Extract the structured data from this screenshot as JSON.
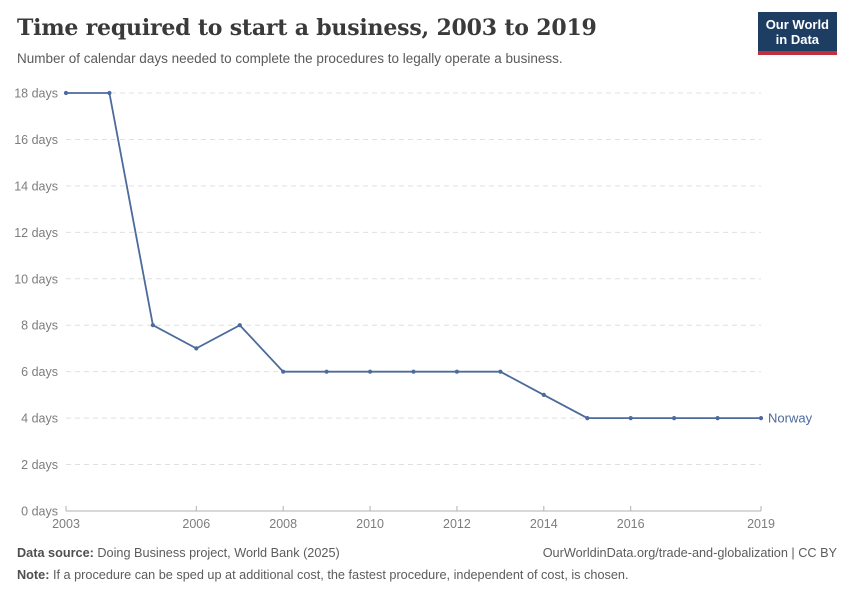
{
  "header": {
    "title": "Time required to start a business, 2003 to 2019",
    "subtitle": "Number of calendar days needed to complete the procedures to legally operate a business.",
    "logo_line1": "Our World",
    "logo_line2": "in Data"
  },
  "chart_data": {
    "type": "line",
    "title": "Time required to start a business, 2003 to 2019",
    "xlabel": "",
    "ylabel": "",
    "xlim": [
      2003,
      2019
    ],
    "ylim": [
      0,
      18
    ],
    "x_ticks": [
      2003,
      2006,
      2008,
      2010,
      2012,
      2014,
      2016,
      2019
    ],
    "y_ticks": [
      0,
      2,
      4,
      6,
      8,
      10,
      12,
      14,
      16,
      18
    ],
    "y_tick_suffix": " days",
    "grid": "horizontal-dashed",
    "legend_position": "end-of-line",
    "series": [
      {
        "name": "Norway",
        "color": "#4C6A9C",
        "x": [
          2003,
          2004,
          2005,
          2006,
          2007,
          2008,
          2009,
          2010,
          2011,
          2012,
          2013,
          2014,
          2015,
          2016,
          2017,
          2018,
          2019
        ],
        "values": [
          18,
          18,
          8,
          7,
          8,
          6,
          6,
          6,
          6,
          6,
          6,
          5,
          4,
          4,
          4,
          4,
          4
        ]
      }
    ]
  },
  "footer": {
    "datasource_label": "Data source:",
    "datasource_text": " Doing Business project, World Bank (2025)",
    "rights_text": "OurWorldinData.org/trade-and-globalization | CC BY",
    "note_label": "Note:",
    "note_text": " If a procedure can be sped up at additional cost, the fastest procedure, independent of cost, is chosen."
  },
  "colors": {
    "line": "#4C6A9C",
    "gridline": "#e0e0e0",
    "axis": "#b0b0b0",
    "logo_bg": "#1d3d63",
    "logo_stripe": "#c0303e"
  }
}
